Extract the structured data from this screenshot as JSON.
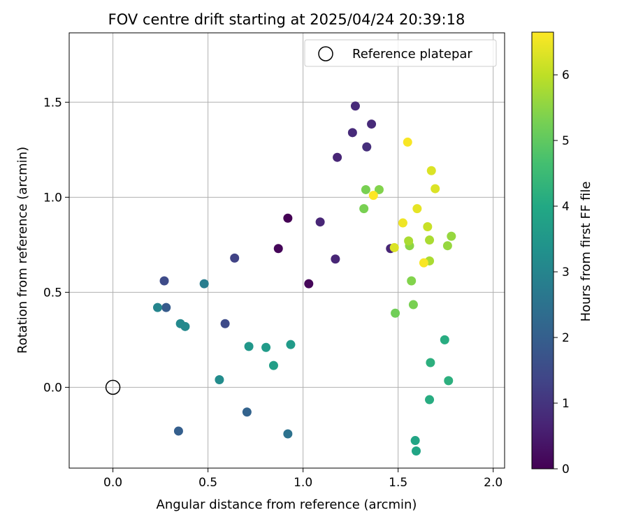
{
  "chart_data": {
    "type": "scatter",
    "title": "FOV centre drift starting at 2025/04/24 20:39:18",
    "xlabel": "Angular distance from reference (arcmin)",
    "ylabel": "Rotation from reference (arcmin)",
    "xlim": [
      -0.23,
      2.06
    ],
    "ylim": [
      -0.425,
      1.865
    ],
    "xticks": [
      0.0,
      0.5,
      1.0,
      1.5,
      2.0
    ],
    "xtick_labels": [
      "0.0",
      "0.5",
      "1.0",
      "1.5",
      "2.0"
    ],
    "yticks": [
      0.0,
      0.5,
      1.0,
      1.5
    ],
    "ytick_labels": [
      "0.0",
      "0.5",
      "1.0",
      "1.5"
    ],
    "grid": true,
    "legend": {
      "location": "top-right",
      "entries": [
        "Reference platepar"
      ]
    },
    "reference_point": {
      "x": 0.0,
      "y": 0.0,
      "marker": "open-circle",
      "label": "Reference platepar"
    },
    "colorbar": {
      "label": "Hours from first FF file",
      "colormap": "viridis",
      "range": [
        0,
        6.65
      ],
      "ticks": [
        0,
        1,
        2,
        3,
        4,
        5,
        6
      ],
      "tick_labels": [
        "0",
        "1",
        "2",
        "3",
        "4",
        "5",
        "6"
      ]
    },
    "points": [
      {
        "x": 0.92,
        "y": 0.89,
        "hours": 0.0
      },
      {
        "x": 0.87,
        "y": 0.73,
        "hours": 0.1
      },
      {
        "x": 1.03,
        "y": 0.545,
        "hours": 0.1
      },
      {
        "x": 1.17,
        "y": 0.675,
        "hours": 0.7
      },
      {
        "x": 1.09,
        "y": 0.87,
        "hours": 0.7
      },
      {
        "x": 1.18,
        "y": 1.21,
        "hours": 0.7
      },
      {
        "x": 1.46,
        "y": 0.73,
        "hours": 0.7
      },
      {
        "x": 1.36,
        "y": 1.385,
        "hours": 0.8
      },
      {
        "x": 1.275,
        "y": 1.48,
        "hours": 0.8
      },
      {
        "x": 1.26,
        "y": 1.34,
        "hours": 0.8
      },
      {
        "x": 1.335,
        "y": 1.265,
        "hours": 0.9
      },
      {
        "x": 0.64,
        "y": 0.68,
        "hours": 1.3
      },
      {
        "x": 0.27,
        "y": 0.56,
        "hours": 1.5
      },
      {
        "x": 0.59,
        "y": 0.335,
        "hours": 1.5
      },
      {
        "x": 0.28,
        "y": 0.42,
        "hours": 1.9
      },
      {
        "x": 0.345,
        "y": -0.23,
        "hours": 2.0
      },
      {
        "x": 0.705,
        "y": -0.13,
        "hours": 2.1
      },
      {
        "x": 0.92,
        "y": -0.245,
        "hours": 2.5
      },
      {
        "x": 0.48,
        "y": 0.545,
        "hours": 2.8
      },
      {
        "x": 0.235,
        "y": 0.42,
        "hours": 3.0
      },
      {
        "x": 0.355,
        "y": 0.335,
        "hours": 3.1
      },
      {
        "x": 0.38,
        "y": 0.32,
        "hours": 3.1
      },
      {
        "x": 0.56,
        "y": 0.04,
        "hours": 3.2
      },
      {
        "x": 0.715,
        "y": 0.215,
        "hours": 3.5
      },
      {
        "x": 0.805,
        "y": 0.21,
        "hours": 3.6
      },
      {
        "x": 0.935,
        "y": 0.225,
        "hours": 3.6
      },
      {
        "x": 0.845,
        "y": 0.115,
        "hours": 3.7
      },
      {
        "x": 1.59,
        "y": -0.28,
        "hours": 3.9
      },
      {
        "x": 1.595,
        "y": -0.335,
        "hours": 3.9
      },
      {
        "x": 1.665,
        "y": -0.065,
        "hours": 4.1
      },
      {
        "x": 1.745,
        "y": 0.25,
        "hours": 4.1
      },
      {
        "x": 1.67,
        "y": 0.13,
        "hours": 4.2
      },
      {
        "x": 1.765,
        "y": 0.035,
        "hours": 4.2
      },
      {
        "x": 1.485,
        "y": 0.39,
        "hours": 5.2
      },
      {
        "x": 1.32,
        "y": 0.94,
        "hours": 5.3
      },
      {
        "x": 1.33,
        "y": 1.04,
        "hours": 5.3
      },
      {
        "x": 1.58,
        "y": 0.435,
        "hours": 5.3
      },
      {
        "x": 1.4,
        "y": 1.04,
        "hours": 5.4
      },
      {
        "x": 1.57,
        "y": 0.56,
        "hours": 5.4
      },
      {
        "x": 1.56,
        "y": 0.745,
        "hours": 5.5
      },
      {
        "x": 1.76,
        "y": 0.745,
        "hours": 5.6
      },
      {
        "x": 1.78,
        "y": 0.795,
        "hours": 5.6
      },
      {
        "x": 1.555,
        "y": 0.77,
        "hours": 5.8
      },
      {
        "x": 1.665,
        "y": 0.665,
        "hours": 5.8
      },
      {
        "x": 1.665,
        "y": 0.775,
        "hours": 5.8
      },
      {
        "x": 1.655,
        "y": 0.845,
        "hours": 6.1
      },
      {
        "x": 1.675,
        "y": 1.14,
        "hours": 6.3
      },
      {
        "x": 1.695,
        "y": 1.045,
        "hours": 6.3
      },
      {
        "x": 1.48,
        "y": 0.735,
        "hours": 6.3
      },
      {
        "x": 1.6,
        "y": 0.94,
        "hours": 6.4
      },
      {
        "x": 1.525,
        "y": 0.865,
        "hours": 6.5
      },
      {
        "x": 1.635,
        "y": 0.655,
        "hours": 6.6
      },
      {
        "x": 1.55,
        "y": 1.29,
        "hours": 6.6
      },
      {
        "x": 1.37,
        "y": 1.01,
        "hours": 6.65
      }
    ]
  }
}
